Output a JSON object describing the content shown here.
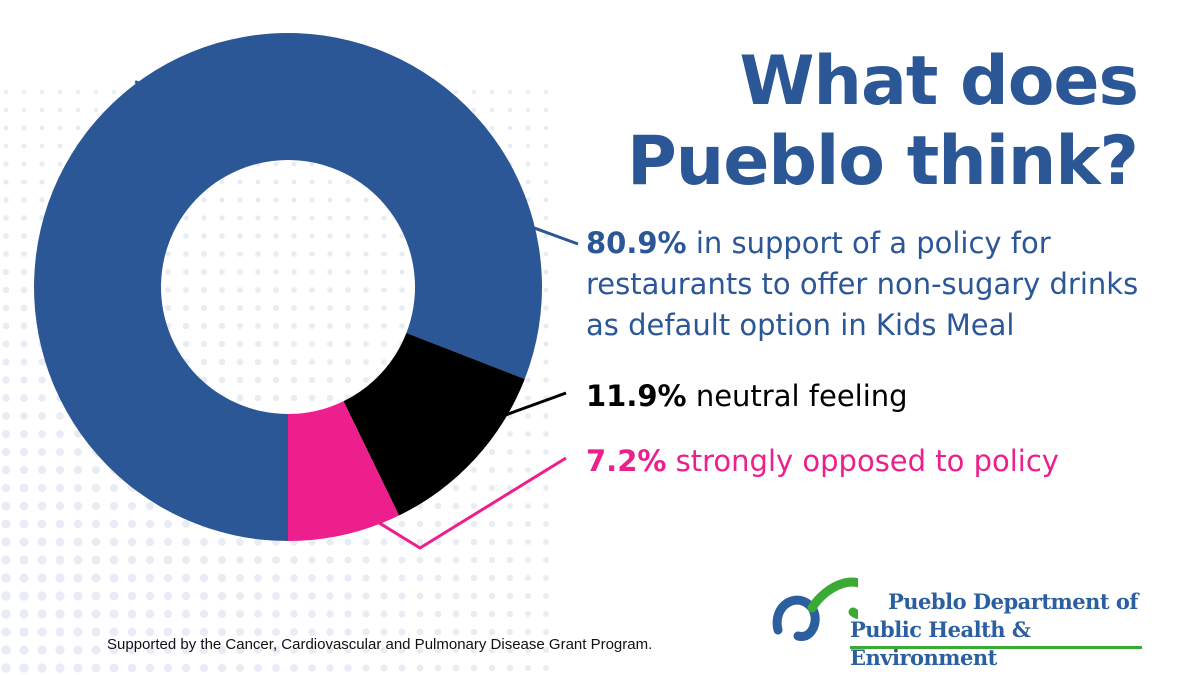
{
  "title": {
    "line1": "What does",
    "line2": "Pueblo think?"
  },
  "chart_data": {
    "type": "pie",
    "variant": "donut",
    "slices": [
      {
        "value": 80.9,
        "label": "80.9%",
        "text": "in support of a policy for restaurants to offer non-sugary drinks as default option in Kids Meal",
        "color": "#2c5797"
      },
      {
        "value": 11.9,
        "label": "11.9%",
        "text": "neutral feeling",
        "color": "#000000"
      },
      {
        "value": 7.2,
        "label": "7.2%",
        "text": "strongly opposed to policy",
        "color": "#ec1f8c"
      }
    ],
    "legend": "right"
  },
  "footer": "Supported by the Cancer, Cardiovascular and Pulmonary Disease Grant Program.",
  "logo": {
    "line1": "Pueblo Department of",
    "line2": "Public Health & Environment"
  },
  "colors": {
    "brand_blue": "#2c5797",
    "accent_pink": "#ec1f8c",
    "logo_green": "#3aaa35",
    "dots": "#e8ecf4"
  }
}
